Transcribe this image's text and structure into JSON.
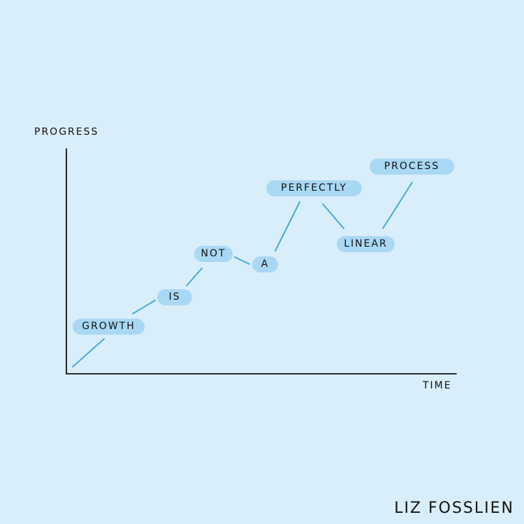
{
  "axes": {
    "y_label": "PROGRESS",
    "x_label": "TIME"
  },
  "words": [
    {
      "text": "GROWTH"
    },
    {
      "text": "IS"
    },
    {
      "text": "NOT"
    },
    {
      "text": "A"
    },
    {
      "text": "PERFECTLY"
    },
    {
      "text": "LINEAR"
    },
    {
      "text": "PROCESS"
    }
  ],
  "signature": "LIZ FOSSLIEN",
  "colors": {
    "background": "#d8eefa",
    "pill": "#a9d8f4",
    "connector": "#4aa8e0",
    "axis": "#111111"
  }
}
